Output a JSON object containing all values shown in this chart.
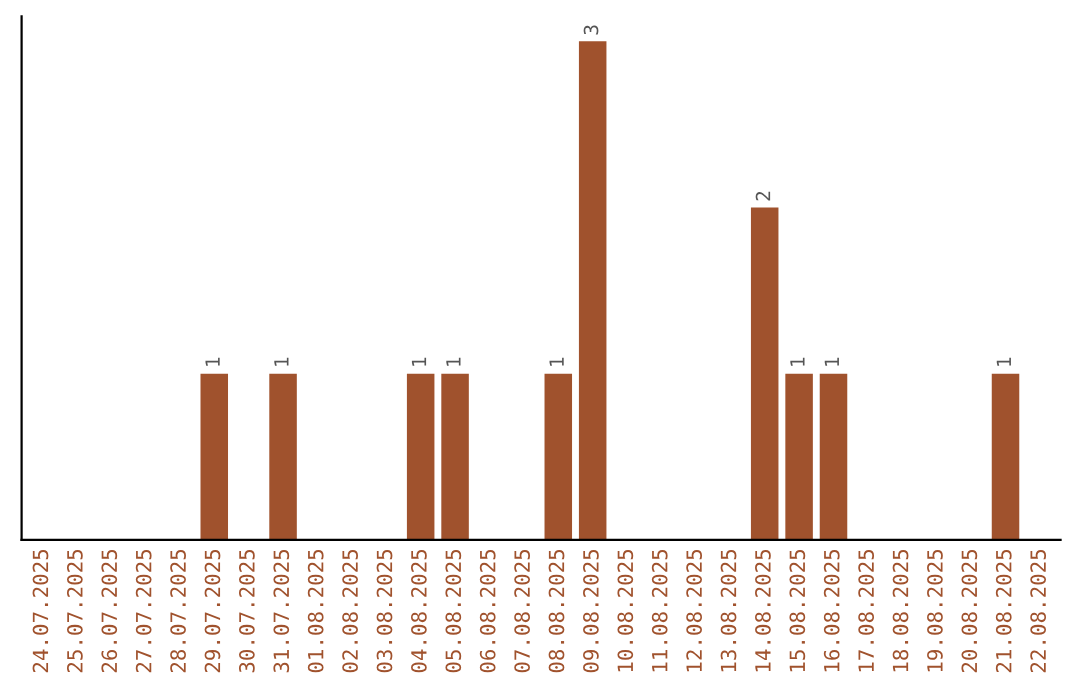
{
  "chart_data": {
    "type": "bar",
    "categories": [
      "24.07.2025",
      "25.07.2025",
      "26.07.2025",
      "27.07.2025",
      "28.07.2025",
      "29.07.2025",
      "30.07.2025",
      "31.07.2025",
      "01.08.2025",
      "02.08.2025",
      "03.08.2025",
      "04.08.2025",
      "05.08.2025",
      "06.08.2025",
      "07.08.2025",
      "08.08.2025",
      "09.08.2025",
      "10.08.2025",
      "11.08.2025",
      "12.08.2025",
      "13.08.2025",
      "14.08.2025",
      "15.08.2025",
      "16.08.2025",
      "17.08.2025",
      "18.08.2025",
      "19.08.2025",
      "20.08.2025",
      "21.08.2025",
      "22.08.2025"
    ],
    "values": [
      0,
      0,
      0,
      0,
      0,
      1,
      0,
      1,
      0,
      0,
      0,
      1,
      1,
      0,
      0,
      1,
      3,
      0,
      0,
      0,
      0,
      2,
      1,
      1,
      0,
      0,
      0,
      0,
      1,
      0
    ],
    "value_labels": [
      null,
      null,
      null,
      null,
      null,
      "1",
      null,
      "1",
      null,
      null,
      null,
      "1",
      "1",
      null,
      null,
      "1",
      "3",
      null,
      null,
      null,
      null,
      "2",
      "1",
      "1",
      null,
      null,
      null,
      null,
      "1",
      null
    ],
    "color": "#a0522d",
    "ylim": [
      0,
      3.15
    ],
    "tick_labels": "x",
    "grid": false,
    "legend": false
  }
}
